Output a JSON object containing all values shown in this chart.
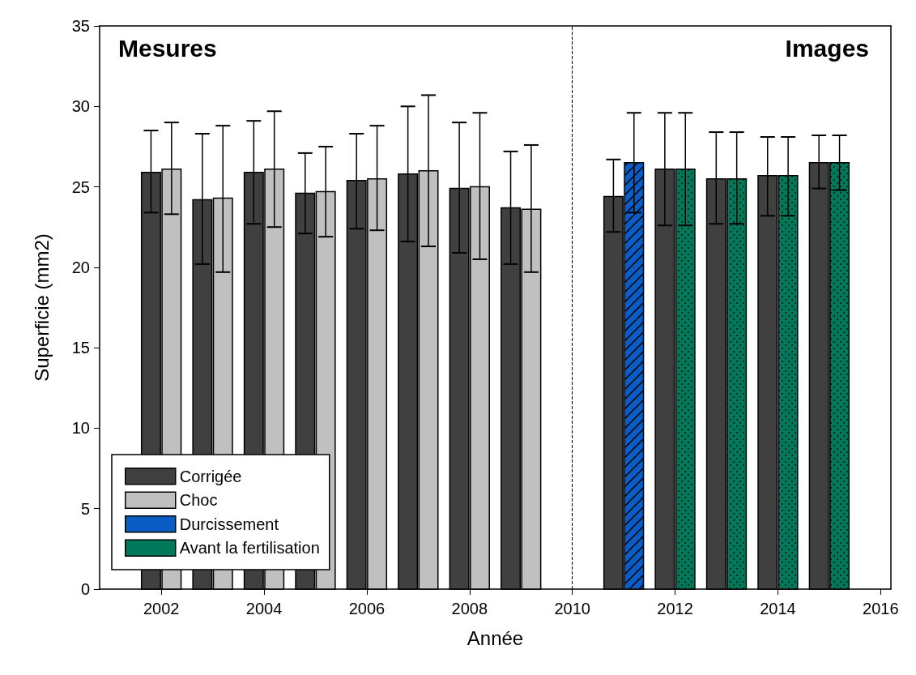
{
  "chart_data": {
    "type": "bar",
    "xlabel": "Année",
    "ylabel": "Superficie (mm2)",
    "xlim": [
      2000.8,
      2016.2
    ],
    "xticks": [
      2002,
      2004,
      2006,
      2008,
      2010,
      2012,
      2014,
      2016
    ],
    "ylim": [
      0,
      35
    ],
    "yticks": [
      0,
      5,
      10,
      15,
      20,
      25,
      30,
      35
    ],
    "series": [
      {
        "name": "Corrigée",
        "color": "#404040",
        "x": [
          2002,
          2003,
          2004,
          2005,
          2006,
          2007,
          2008,
          2009,
          2011,
          2012,
          2013,
          2014,
          2015
        ],
        "values": [
          25.9,
          24.2,
          25.9,
          24.6,
          25.4,
          25.8,
          24.9,
          23.7,
          24.4,
          26.1,
          25.5,
          25.7,
          26.5
        ],
        "errors": [
          [
            23.4,
            28.5
          ],
          [
            20.2,
            28.3
          ],
          [
            22.7,
            29.1
          ],
          [
            22.1,
            27.1
          ],
          [
            22.4,
            28.3
          ],
          [
            21.6,
            30.0
          ],
          [
            20.9,
            29.0
          ],
          [
            20.2,
            27.2
          ],
          [
            22.2,
            26.7
          ],
          [
            22.6,
            29.6
          ],
          [
            22.7,
            28.4
          ],
          [
            23.2,
            28.1
          ],
          [
            24.9,
            28.2
          ]
        ]
      },
      {
        "name": "Choc",
        "color": "#c0c0c0",
        "x": [
          2002,
          2003,
          2004,
          2005,
          2006,
          2007,
          2008,
          2009
        ],
        "values": [
          26.1,
          24.3,
          26.1,
          24.7,
          25.5,
          26.0,
          25.0,
          23.6
        ],
        "errors": [
          [
            23.3,
            29.0
          ],
          [
            19.7,
            28.8
          ],
          [
            22.5,
            29.7
          ],
          [
            21.9,
            27.5
          ],
          [
            22.3,
            28.8
          ],
          [
            21.3,
            30.7
          ],
          [
            20.5,
            29.6
          ],
          [
            19.7,
            27.6
          ]
        ]
      },
      {
        "name": "Durcissement",
        "color": "#0b5cc4",
        "x": [
          2011
        ],
        "values": [
          26.5
        ],
        "errors": [
          [
            23.4,
            29.6
          ]
        ]
      },
      {
        "name": "Avant la fertilisation",
        "color": "#00785a",
        "x": [
          2012,
          2013,
          2014,
          2015
        ],
        "values": [
          26.1,
          25.5,
          25.7,
          26.5
        ],
        "errors": [
          [
            22.6,
            29.6
          ],
          [
            22.7,
            28.4
          ],
          [
            23.2,
            28.1
          ],
          [
            24.8,
            28.2
          ]
        ]
      }
    ],
    "ref_lines": [
      {
        "axis": "x",
        "value": 2010,
        "label": null,
        "line_style": "dashed",
        "color": "#000000"
      }
    ],
    "annotations": [
      "Mesures",
      "Images"
    ],
    "grid": false,
    "legend": "bottom left"
  }
}
